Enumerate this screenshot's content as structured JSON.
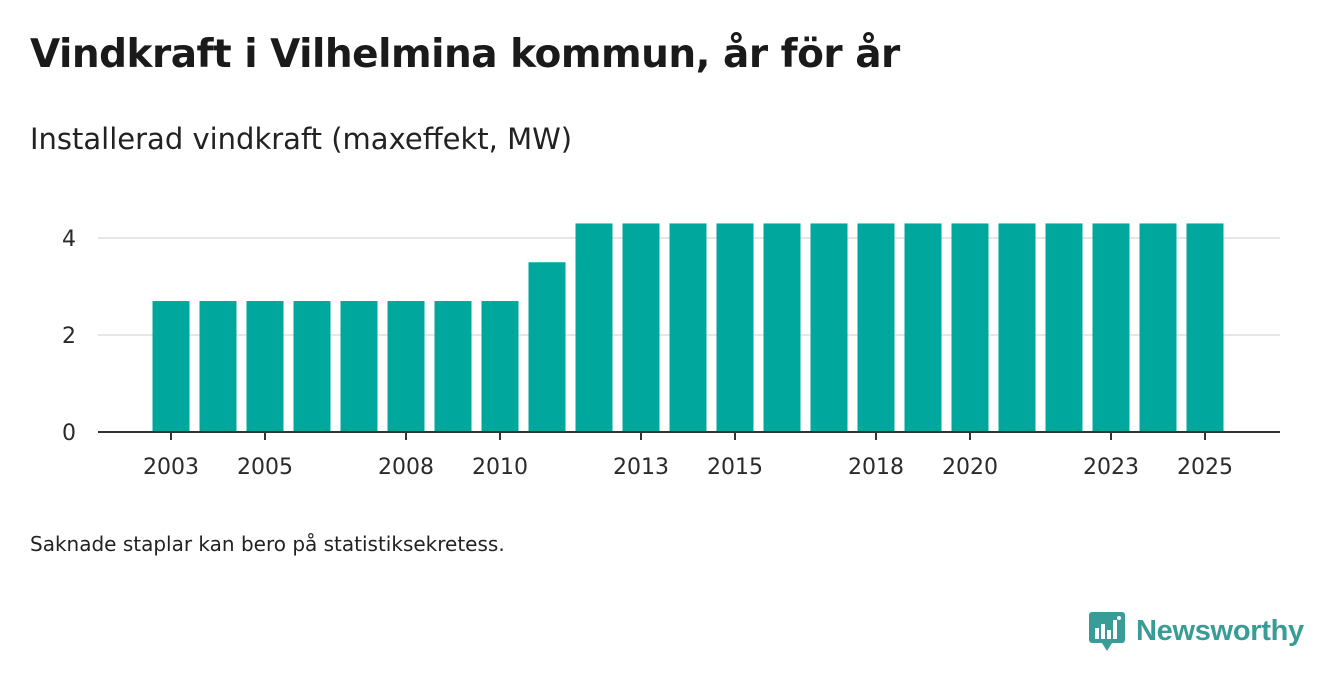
{
  "header": {
    "title": "Vindkraft i Vilhelmina kommun, år för år",
    "subtitle": "Installerad vindkraft (maxeffekt, MW)"
  },
  "footer": {
    "note": "Saknade staplar kan bero på statistiksekretess.",
    "brand": "Newsworthy"
  },
  "colors": {
    "bar": "#00a79d",
    "grid": "#dddddd",
    "axis": "#333333",
    "brand": "#3a9c96"
  },
  "icons": {
    "logo": "bar-chart-speech-bubble-icon"
  },
  "chart_data": {
    "type": "bar",
    "title": "Vindkraft i Vilhelmina kommun, år för år",
    "ylabel": "Installerad vindkraft (maxeffekt, MW)",
    "xlabel": "",
    "categories": [
      "2003",
      "2004",
      "2005",
      "2006",
      "2007",
      "2008",
      "2009",
      "2010",
      "2011",
      "2012",
      "2013",
      "2014",
      "2015",
      "2016",
      "2017",
      "2018",
      "2019",
      "2020",
      "2021",
      "2022",
      "2023",
      "2024",
      "2025"
    ],
    "values": [
      2.7,
      2.7,
      2.7,
      2.7,
      2.7,
      2.7,
      2.7,
      2.7,
      3.5,
      4.3,
      4.3,
      4.3,
      4.3,
      4.3,
      4.3,
      4.3,
      4.3,
      4.3,
      4.3,
      4.3,
      4.3,
      4.3,
      4.3
    ],
    "x_tick_labels": [
      "2003",
      "2005",
      "2008",
      "2010",
      "2013",
      "2015",
      "2018",
      "2020",
      "2023",
      "2025"
    ],
    "y_ticks": [
      0,
      2,
      4
    ],
    "ylim": [
      0,
      4.5
    ],
    "grid": true
  }
}
